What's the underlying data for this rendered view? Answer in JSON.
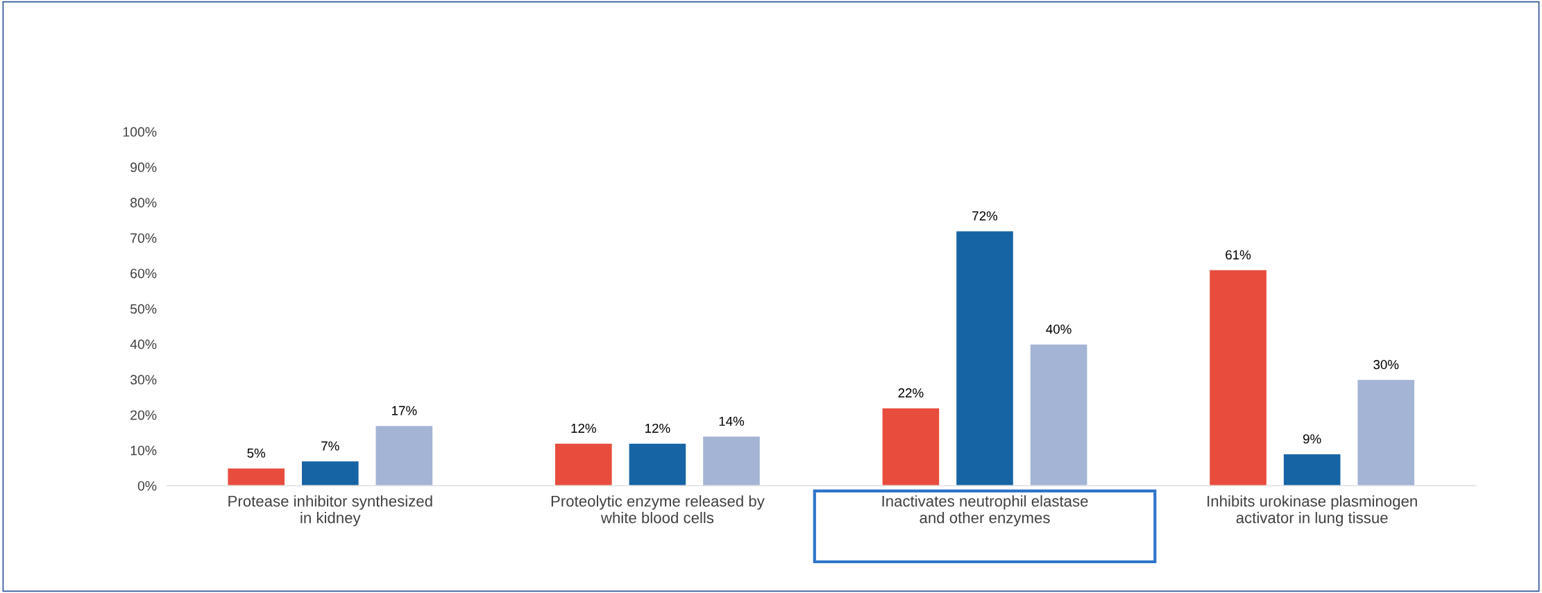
{
  "chart_data": {
    "type": "bar",
    "categories": [
      "Protease inhibitor synthesized in kidney",
      "Proteolytic enzyme released by white blood cells",
      "Inactivates neutrophil elastase and other enzymes",
      "Inhibits urokinase plasminogen activator in lung tissue"
    ],
    "series": [
      {
        "color": "#e84c3d",
        "values": [
          5,
          12,
          22,
          61
        ],
        "value_labels": [
          "5%",
          "12%",
          "22%",
          "61%"
        ]
      },
      {
        "color": "#1764a5",
        "values": [
          7,
          12,
          72,
          9
        ],
        "value_labels": [
          "7%",
          "12%",
          "72%",
          "9%"
        ]
      },
      {
        "color": "#a3b4d4",
        "values": [
          17,
          14,
          40,
          30
        ],
        "value_labels": [
          "17%",
          "14%",
          "40%",
          "30%"
        ]
      }
    ],
    "ylim": [
      0,
      100
    ],
    "yticks": [
      {
        "value": 0,
        "label": "0%"
      },
      {
        "value": 10,
        "label": "10%"
      },
      {
        "value": 20,
        "label": "20%"
      },
      {
        "value": 30,
        "label": "30%"
      },
      {
        "value": 40,
        "label": "40%"
      },
      {
        "value": 50,
        "label": "50%"
      },
      {
        "value": 60,
        "label": "60%"
      },
      {
        "value": 70,
        "label": "70%"
      },
      {
        "value": 80,
        "label": "80%"
      },
      {
        "value": 90,
        "label": "90%"
      },
      {
        "value": 100,
        "label": "100%"
      }
    ],
    "grid": false,
    "legend": false
  }
}
